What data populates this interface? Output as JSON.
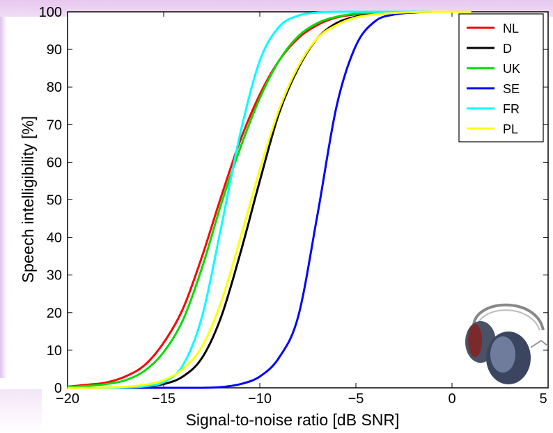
{
  "chart_data": {
    "type": "line",
    "title": "",
    "xlabel": "Signal-to-noise ratio [dB SNR]",
    "ylabel": "Speech intelligibility [%]",
    "xlim": [
      -20,
      5
    ],
    "ylim": [
      0,
      100
    ],
    "xticks": [
      -20,
      -15,
      -10,
      -5,
      0,
      5
    ],
    "yticks": [
      0,
      10,
      20,
      30,
      40,
      50,
      60,
      70,
      80,
      90,
      100
    ],
    "xtick_labels": [
      "−20",
      "−15",
      "−10",
      "−5",
      "0",
      "5"
    ],
    "ytick_labels": [
      "0",
      "10",
      "20",
      "30",
      "40",
      "50",
      "60",
      "70",
      "80",
      "90",
      "100"
    ],
    "grid": false,
    "legend_position": "top-right",
    "x": [
      -20,
      -19,
      -18,
      -17,
      -16,
      -15,
      -14,
      -13,
      -12,
      -11,
      -10,
      -9,
      -8,
      -7,
      -6,
      -5,
      -4,
      -3,
      -2,
      -1,
      0,
      1
    ],
    "series": [
      {
        "name": "NL",
        "color": "#ff0000",
        "values": [
          0.3,
          0.8,
          1.4,
          3,
          6,
          12,
          21,
          35,
          51,
          66,
          78,
          87,
          93,
          96.5,
          98.5,
          99.3,
          99.7,
          99.9,
          100,
          100,
          100,
          100
        ]
      },
      {
        "name": "D",
        "color": "#000000",
        "values": [
          0,
          0,
          0,
          0.1,
          0.3,
          1,
          3,
          8,
          19,
          36,
          55,
          73,
          85,
          93,
          97,
          98.7,
          99.5,
          99.8,
          100,
          100,
          100,
          100
        ]
      },
      {
        "name": "UK",
        "color": "#00dd00",
        "values": [
          0.2,
          0.5,
          1,
          2,
          4.5,
          9.5,
          18,
          32,
          49,
          64,
          77,
          87,
          93.5,
          97,
          98.7,
          99.5,
          99.8,
          100,
          100,
          100,
          100,
          100
        ]
      },
      {
        "name": "SE",
        "color": "#0000ff",
        "values": [
          0,
          0,
          0,
          0,
          0,
          0,
          0,
          0,
          0.2,
          1,
          3,
          8,
          19,
          46,
          75,
          91,
          97.5,
          99.3,
          99.8,
          100,
          100,
          100
        ]
      },
      {
        "name": "FR",
        "color": "#00ffff",
        "values": [
          0,
          0,
          0,
          0.1,
          0.4,
          1.5,
          6,
          19,
          43,
          68,
          87,
          96,
          99,
          99.8,
          100,
          100,
          100,
          100,
          100,
          100,
          100,
          100
        ]
      },
      {
        "name": "PL",
        "color": "#ffff00",
        "values": [
          0,
          0,
          0.1,
          0.3,
          0.8,
          2,
          5,
          11,
          23,
          40,
          58,
          74,
          85.5,
          93,
          96.5,
          98.5,
          99.3,
          99.7,
          99.9,
          100,
          100,
          100
        ]
      }
    ]
  }
}
